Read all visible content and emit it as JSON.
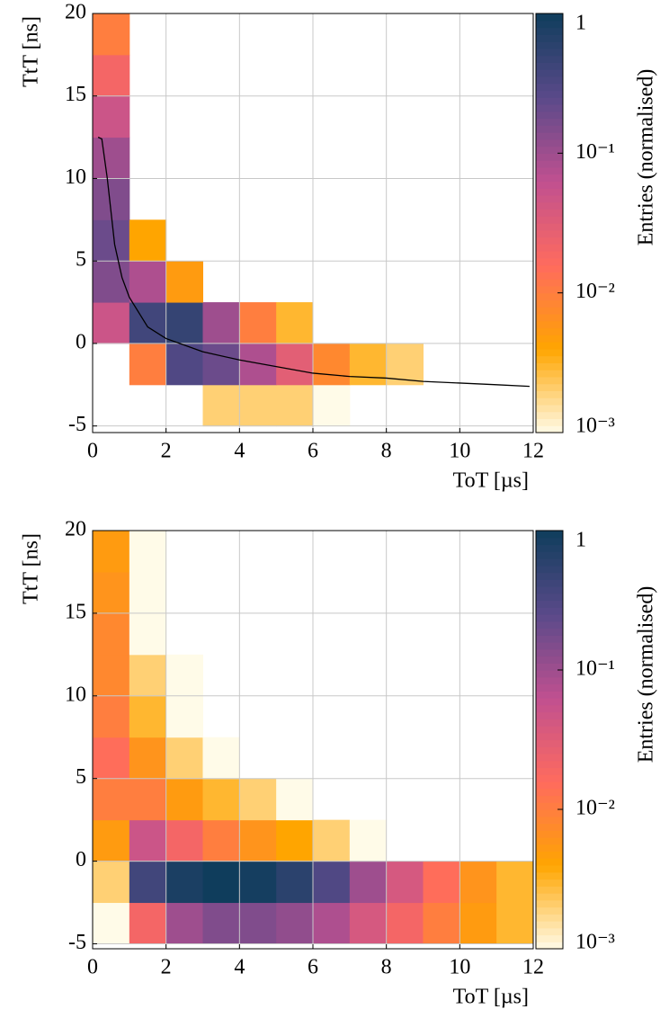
{
  "chart_data": [
    {
      "type": "heatmap",
      "xlabel": "ToT [µs]",
      "ylabel": "TtT [ns]",
      "xbins": [
        0,
        1,
        2,
        3,
        4,
        5,
        6,
        7,
        8,
        9,
        10,
        11,
        12
      ],
      "ybins": [
        -5,
        -2.5,
        0,
        2.5,
        5,
        7.5,
        10,
        12.5,
        15,
        17.5,
        20
      ],
      "z": [
        [
          null,
          null,
          null,
          0.002,
          0.002,
          0.002,
          0.001,
          null,
          null,
          null,
          null,
          null
        ],
        [
          null,
          0.01,
          0.3,
          0.2,
          0.08,
          0.03,
          0.008,
          0.003,
          0.002,
          null,
          null,
          null
        ],
        [
          0.05,
          0.4,
          0.5,
          0.1,
          0.01,
          0.003,
          null,
          null,
          null,
          null,
          null,
          null
        ],
        [
          0.15,
          0.08,
          0.005,
          null,
          null,
          null,
          null,
          null,
          null,
          null,
          null,
          null
        ],
        [
          0.2,
          0.004,
          null,
          null,
          null,
          null,
          null,
          null,
          null,
          null,
          null,
          null
        ],
        [
          0.15,
          null,
          null,
          null,
          null,
          null,
          null,
          null,
          null,
          null,
          null,
          null
        ],
        [
          0.1,
          null,
          null,
          null,
          null,
          null,
          null,
          null,
          null,
          null,
          null,
          null
        ],
        [
          0.05,
          null,
          null,
          null,
          null,
          null,
          null,
          null,
          null,
          null,
          null,
          null
        ],
        [
          0.02,
          null,
          null,
          null,
          null,
          null,
          null,
          null,
          null,
          null,
          null,
          null
        ],
        [
          0.01,
          null,
          null,
          null,
          null,
          null,
          null,
          null,
          null,
          null,
          null,
          null
        ]
      ],
      "series": [
        {
          "color": "#000000",
          "x": [
            0.15,
            0.25,
            0.4,
            0.6,
            0.8,
            1,
            1.5,
            2,
            3,
            4,
            5,
            6,
            7,
            8,
            9,
            10,
            11,
            11.9
          ],
          "y": [
            12.5,
            12.4,
            10,
            6,
            4,
            2.8,
            1,
            0.3,
            -0.5,
            -1,
            -1.4,
            -1.8,
            -2,
            -2.1,
            -2.3,
            -2.4,
            -2.5,
            -2.6
          ]
        }
      ],
      "xlim": [
        0,
        12
      ],
      "ylim": [
        -5.4,
        20
      ],
      "xticks": [
        0,
        2,
        4,
        6,
        8,
        10,
        12
      ],
      "yticks": [
        -5,
        0,
        5,
        10,
        15,
        20
      ],
      "grid": true,
      "colormap": [
        "#fffbe8",
        "#ffa500",
        "#ff6b5e",
        "#c05090",
        "#5a4a8a",
        "#0f3d5c"
      ],
      "colorbar": {
        "label": "Entries (normalised)",
        "log": true,
        "lim": [
          0.001,
          1
        ],
        "ticks": [
          {
            "value": 1,
            "label": "1"
          },
          {
            "value": 0.1,
            "label": "10⁻¹"
          },
          {
            "value": 0.01,
            "label": "10⁻²"
          },
          {
            "value": 0.001,
            "label": "10⁻³"
          }
        ]
      }
    },
    {
      "type": "heatmap",
      "xlabel": "ToT [µs]",
      "ylabel": "TtT [ns]",
      "xbins": [
        0,
        1,
        2,
        3,
        4,
        5,
        6,
        7,
        8,
        9,
        10,
        11,
        12
      ],
      "ybins": [
        -5,
        -2.5,
        0,
        2.5,
        5,
        7.5,
        10,
        12.5,
        15,
        17.5,
        20
      ],
      "z": [
        [
          0.001,
          0.02,
          0.1,
          0.15,
          0.15,
          0.12,
          0.08,
          0.04,
          0.02,
          0.01,
          0.005,
          0.003
        ],
        [
          0.002,
          0.4,
          0.8,
          1,
          0.9,
          0.6,
          0.3,
          0.1,
          0.04,
          0.015,
          0.006,
          0.003
        ],
        [
          0.005,
          0.05,
          0.02,
          0.01,
          0.006,
          0.004,
          0.002,
          0.001,
          null,
          null,
          null,
          null
        ],
        [
          0.01,
          0.01,
          0.005,
          0.003,
          0.002,
          0.001,
          null,
          null,
          null,
          null,
          null,
          null
        ],
        [
          0.015,
          0.006,
          0.002,
          0.001,
          null,
          null,
          null,
          null,
          null,
          null,
          null,
          null
        ],
        [
          0.01,
          0.003,
          0.001,
          null,
          null,
          null,
          null,
          null,
          null,
          null,
          null,
          null
        ],
        [
          0.008,
          0.002,
          0.001,
          null,
          null,
          null,
          null,
          null,
          null,
          null,
          null,
          null
        ],
        [
          0.008,
          0.001,
          null,
          null,
          null,
          null,
          null,
          null,
          null,
          null,
          null,
          null
        ],
        [
          0.006,
          0.001,
          null,
          null,
          null,
          null,
          null,
          null,
          null,
          null,
          null,
          null
        ],
        [
          0.005,
          0.001,
          null,
          null,
          null,
          null,
          null,
          null,
          null,
          null,
          null,
          null
        ]
      ],
      "xlim": [
        0,
        12
      ],
      "ylim": [
        -5.3,
        20
      ],
      "xticks": [
        0,
        2,
        4,
        6,
        8,
        10,
        12
      ],
      "yticks": [
        -5,
        0,
        5,
        10,
        15,
        20
      ],
      "grid": true,
      "colormap": [
        "#fffbe8",
        "#ffa500",
        "#ff6b5e",
        "#c05090",
        "#5a4a8a",
        "#0f3d5c"
      ],
      "colorbar": {
        "label": "Entries (normalised)",
        "log": true,
        "lim": [
          0.001,
          1
        ],
        "ticks": [
          {
            "value": 1,
            "label": "1"
          },
          {
            "value": 0.1,
            "label": "10⁻¹"
          },
          {
            "value": 0.01,
            "label": "10⁻²"
          },
          {
            "value": 0.001,
            "label": "10⁻³"
          }
        ]
      }
    }
  ]
}
